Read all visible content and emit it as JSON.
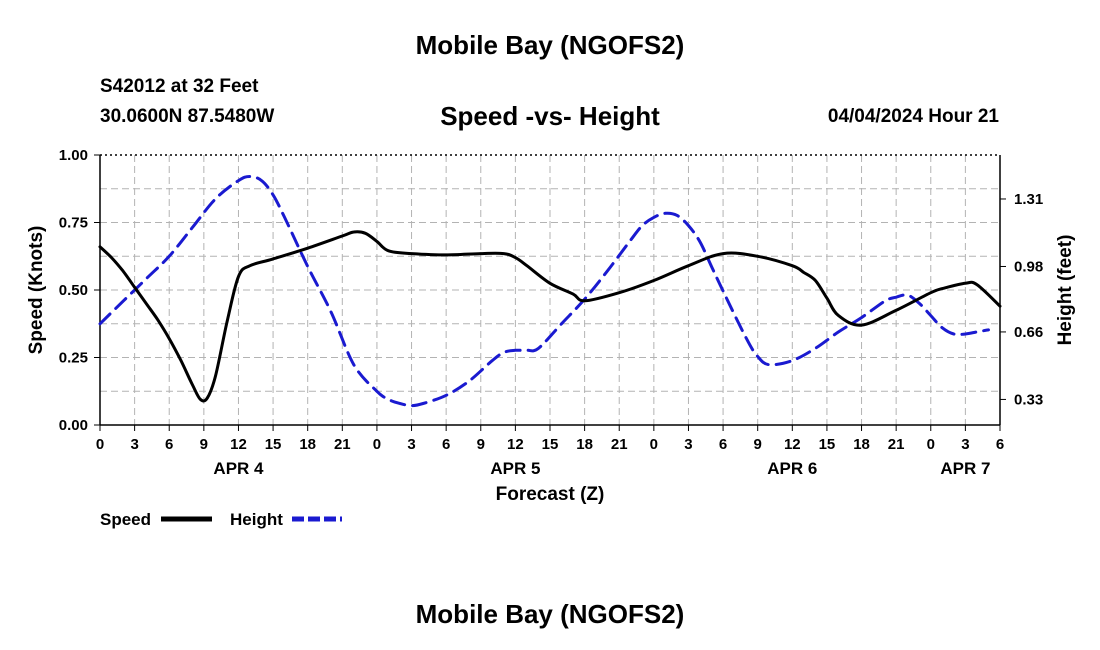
{
  "header": {
    "title": "Mobile Bay (NGOFS2)",
    "station": "S42012 at 32 Feet",
    "coords": "30.0600N  87.5480W",
    "subtitle": "Speed -vs- Height",
    "forecast_time": "04/04/2024 Hour 21"
  },
  "footer": {
    "title": "Mobile Bay (NGOFS2)"
  },
  "chart_data": {
    "type": "line",
    "title": "Speed -vs- Height",
    "xlabel": "Forecast (Z)",
    "ylabel": "Speed (Knots)",
    "y2label": "Height (feet)",
    "xlim": [
      0,
      78
    ],
    "ylim": [
      0,
      1.0
    ],
    "y2lim": [
      0.205,
      1.525
    ],
    "grid": true,
    "x_ticks": [
      0,
      3,
      6,
      9,
      12,
      15,
      18,
      21,
      24,
      27,
      30,
      33,
      36,
      39,
      42,
      45,
      48,
      51,
      54,
      57,
      60,
      63,
      66,
      69,
      72,
      75,
      78
    ],
    "x_tick_labels": [
      "0",
      "3",
      "6",
      "9",
      "12",
      "15",
      "18",
      "21",
      "0",
      "3",
      "6",
      "9",
      "12",
      "15",
      "18",
      "21",
      "0",
      "3",
      "6",
      "9",
      "12",
      "15",
      "18",
      "21",
      "0",
      "3",
      "6"
    ],
    "day_labels": [
      {
        "x": 12,
        "label": "APR 4"
      },
      {
        "x": 36,
        "label": "APR 5"
      },
      {
        "x": 60,
        "label": "APR 6"
      },
      {
        "x": 75,
        "label": "APR 7"
      }
    ],
    "y_ticks": [
      0.0,
      0.25,
      0.5,
      0.75,
      1.0
    ],
    "y_tick_labels": [
      "0.00",
      "0.25",
      "0.50",
      "0.75",
      "1.00"
    ],
    "y2_ticks": [
      0.33,
      0.66,
      0.98,
      1.31
    ],
    "y2_tick_labels": [
      "0.33",
      "0.66",
      "0.98",
      "1.31"
    ],
    "legend": [
      {
        "name": "Speed",
        "color": "#000000",
        "dash": false
      },
      {
        "name": "Height",
        "color": "#1a1ad0",
        "dash": true
      }
    ],
    "series": [
      {
        "name": "Speed",
        "axis": "left",
        "color": "#000000",
        "x": [
          0,
          1,
          2,
          3,
          4,
          5,
          6,
          7,
          8,
          8.7,
          9.3,
          10,
          11,
          12,
          13,
          15,
          18,
          21,
          22,
          23,
          24,
          25,
          27,
          30,
          33,
          35,
          36,
          37,
          39,
          41,
          42,
          45,
          48,
          51,
          54,
          57,
          60,
          61,
          62,
          63,
          64,
          66,
          69,
          72,
          73,
          75,
          76,
          78
        ],
        "values": [
          0.66,
          0.62,
          0.57,
          0.51,
          0.45,
          0.39,
          0.32,
          0.24,
          0.15,
          0.095,
          0.1,
          0.18,
          0.38,
          0.55,
          0.59,
          0.615,
          0.655,
          0.7,
          0.715,
          0.71,
          0.68,
          0.645,
          0.635,
          0.63,
          0.635,
          0.635,
          0.62,
          0.59,
          0.525,
          0.485,
          0.46,
          0.49,
          0.535,
          0.59,
          0.635,
          0.625,
          0.59,
          0.565,
          0.535,
          0.47,
          0.405,
          0.37,
          0.425,
          0.49,
          0.505,
          0.525,
          0.52,
          0.44
        ]
      },
      {
        "name": "Height",
        "axis": "right",
        "color": "#1a1ad0",
        "x": [
          0,
          2,
          4,
          6,
          8,
          10,
          12,
          13,
          14,
          15,
          16,
          18,
          20,
          22,
          24,
          25,
          26,
          27,
          28,
          30,
          32,
          34,
          35,
          36,
          37,
          38,
          40,
          42,
          44,
          46,
          47,
          48,
          49,
          50,
          51,
          52,
          53,
          54,
          56,
          57,
          58,
          60,
          62,
          64,
          66,
          68,
          69,
          70,
          71,
          72,
          73,
          74,
          75,
          76,
          77
        ],
        "values": [
          0.7,
          0.81,
          0.92,
          1.03,
          1.17,
          1.31,
          1.4,
          1.42,
          1.4,
          1.33,
          1.22,
          0.98,
          0.76,
          0.5,
          0.37,
          0.33,
          0.31,
          0.3,
          0.31,
          0.35,
          0.42,
          0.52,
          0.56,
          0.57,
          0.57,
          0.58,
          0.7,
          0.82,
          0.96,
          1.11,
          1.18,
          1.22,
          1.24,
          1.23,
          1.18,
          1.1,
          0.98,
          0.86,
          0.63,
          0.54,
          0.5,
          0.52,
          0.58,
          0.66,
          0.73,
          0.81,
          0.83,
          0.84,
          0.8,
          0.74,
          0.68,
          0.65,
          0.65,
          0.66,
          0.67
        ]
      }
    ]
  }
}
